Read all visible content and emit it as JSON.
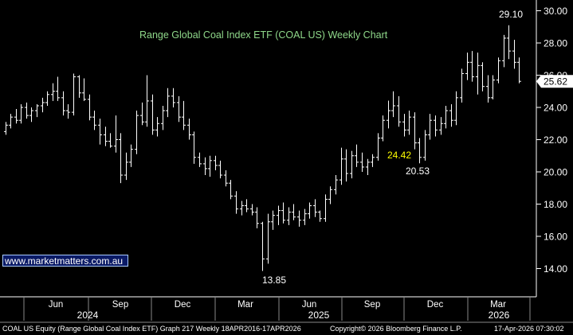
{
  "chart_data": {
    "type": "ohlc",
    "title": "Range Global Coal Index ETF (COAL US) Weekly Chart",
    "ylim": [
      13.0,
      30.6
    ],
    "y_ticks": [
      "14.00",
      "16.00",
      "18.00",
      "20.00",
      "22.00",
      "24.00",
      "26.00",
      "28.00",
      "30.00"
    ],
    "x_month_ticks": [
      "Jun",
      "Sep",
      "Dec",
      "Mar",
      "Jun",
      "Sep",
      "Dec",
      "Mar"
    ],
    "x_year_ticks": [
      "2024",
      "2025",
      "2026"
    ],
    "last_price": "25.62",
    "annotations": [
      "29.10",
      "24.42",
      "20.53",
      "13.85"
    ],
    "series": [
      {
        "values": [
          [
            22.5,
            23.1,
            22.3,
            22.9
          ],
          [
            22.9,
            23.6,
            22.7,
            23.4
          ],
          [
            23.4,
            23.9,
            23.0,
            23.2
          ],
          [
            23.2,
            24.2,
            23.0,
            24.0
          ],
          [
            24.0,
            24.3,
            23.3,
            23.5
          ],
          [
            23.5,
            24.0,
            23.1,
            23.8
          ],
          [
            23.8,
            24.2,
            23.4,
            24.1
          ],
          [
            24.1,
            24.6,
            23.7,
            24.3
          ],
          [
            24.3,
            25.0,
            24.1,
            24.8
          ],
          [
            24.8,
            25.5,
            24.4,
            25.0
          ],
          [
            25.0,
            25.9,
            24.4,
            24.6
          ],
          [
            24.6,
            25.0,
            23.5,
            23.8
          ],
          [
            23.8,
            24.2,
            23.3,
            23.7
          ],
          [
            23.7,
            26.1,
            23.5,
            25.9
          ],
          [
            25.9,
            26.0,
            24.6,
            24.9
          ],
          [
            24.9,
            25.8,
            24.4,
            24.5
          ],
          [
            24.5,
            24.8,
            23.2,
            23.4
          ],
          [
            23.4,
            23.8,
            22.6,
            22.9
          ],
          [
            22.9,
            23.3,
            21.7,
            22.3
          ],
          [
            22.3,
            22.8,
            21.6,
            21.9
          ],
          [
            21.9,
            22.4,
            21.5,
            21.6
          ],
          [
            21.6,
            23.5,
            21.2,
            22.0
          ],
          [
            22.0,
            22.4,
            19.3,
            19.8
          ],
          [
            19.8,
            21.2,
            19.5,
            20.6
          ],
          [
            20.6,
            21.7,
            20.3,
            21.4
          ],
          [
            21.4,
            23.8,
            21.1,
            23.5
          ],
          [
            23.5,
            24.3,
            22.9,
            23.1
          ],
          [
            23.1,
            26.0,
            22.8,
            24.4
          ],
          [
            24.4,
            24.8,
            22.3,
            22.6
          ],
          [
            22.6,
            23.4,
            22.2,
            23.0
          ],
          [
            23.0,
            24.1,
            22.6,
            23.8
          ],
          [
            23.8,
            25.2,
            23.4,
            24.7
          ],
          [
            24.7,
            25.2,
            24.0,
            24.3
          ],
          [
            24.3,
            24.7,
            23.1,
            23.4
          ],
          [
            23.4,
            24.4,
            22.6,
            22.9
          ],
          [
            22.9,
            23.3,
            22.0,
            22.3
          ],
          [
            22.3,
            22.5,
            20.5,
            20.9
          ],
          [
            20.9,
            21.2,
            20.3,
            20.5
          ],
          [
            20.5,
            20.9,
            19.8,
            20.2
          ],
          [
            20.2,
            21.0,
            19.7,
            20.7
          ],
          [
            20.7,
            21.0,
            20.1,
            20.4
          ],
          [
            20.4,
            20.7,
            19.6,
            19.8
          ],
          [
            19.8,
            20.1,
            19.1,
            19.3
          ],
          [
            19.3,
            19.5,
            18.3,
            18.5
          ],
          [
            18.5,
            18.8,
            17.4,
            17.7
          ],
          [
            17.7,
            18.2,
            17.3,
            17.9
          ],
          [
            17.9,
            18.3,
            17.5,
            17.7
          ],
          [
            17.7,
            18.0,
            17.3,
            17.5
          ],
          [
            17.5,
            17.8,
            16.5,
            16.8
          ],
          [
            16.8,
            16.9,
            13.85,
            14.6
          ],
          [
            14.6,
            17.4,
            14.3,
            16.9
          ],
          [
            16.9,
            17.6,
            16.4,
            17.3
          ],
          [
            17.3,
            17.9,
            16.7,
            17.6
          ],
          [
            17.6,
            18.1,
            16.8,
            17.0
          ],
          [
            17.0,
            17.8,
            16.7,
            17.5
          ],
          [
            17.5,
            18.0,
            17.0,
            17.2
          ],
          [
            17.2,
            17.6,
            16.6,
            17.0
          ],
          [
            17.0,
            17.7,
            16.7,
            17.4
          ],
          [
            17.4,
            18.1,
            17.1,
            17.9
          ],
          [
            17.9,
            18.3,
            17.2,
            17.5
          ],
          [
            17.5,
            17.6,
            16.9,
            17.1
          ],
          [
            17.1,
            18.6,
            16.9,
            18.3
          ],
          [
            18.3,
            19.1,
            18.0,
            18.9
          ],
          [
            18.9,
            19.8,
            18.6,
            19.5
          ],
          [
            19.5,
            21.5,
            19.2,
            20.8
          ],
          [
            20.8,
            21.4,
            19.4,
            19.9
          ],
          [
            19.9,
            21.3,
            19.6,
            21.0
          ],
          [
            21.0,
            21.7,
            20.3,
            20.6
          ],
          [
            20.6,
            21.2,
            20.0,
            20.3
          ],
          [
            20.3,
            20.8,
            19.8,
            20.6
          ],
          [
            20.6,
            21.1,
            20.3,
            20.9
          ],
          [
            20.9,
            22.4,
            20.7,
            22.1
          ],
          [
            22.1,
            23.5,
            21.9,
            23.2
          ],
          [
            23.2,
            24.42,
            22.7,
            23.8
          ],
          [
            23.8,
            25.0,
            23.4,
            24.1
          ],
          [
            24.1,
            24.7,
            22.8,
            23.1
          ],
          [
            23.1,
            23.6,
            22.2,
            22.6
          ],
          [
            22.6,
            23.8,
            22.3,
            23.4
          ],
          [
            23.4,
            23.7,
            21.4,
            21.8
          ],
          [
            21.8,
            22.1,
            20.53,
            20.9
          ],
          [
            20.9,
            22.6,
            20.7,
            22.3
          ],
          [
            22.3,
            23.6,
            22.0,
            23.2
          ],
          [
            23.2,
            23.5,
            22.2,
            22.6
          ],
          [
            22.6,
            23.4,
            22.3,
            23.0
          ],
          [
            23.0,
            24.1,
            22.7,
            23.8
          ],
          [
            23.8,
            24.2,
            22.8,
            23.2
          ],
          [
            23.2,
            25.0,
            22.9,
            24.6
          ],
          [
            24.6,
            26.4,
            24.3,
            26.1
          ],
          [
            26.1,
            27.4,
            25.7,
            26.8
          ],
          [
            26.8,
            27.5,
            25.6,
            25.9
          ],
          [
            25.9,
            27.4,
            24.8,
            26.6
          ],
          [
            26.6,
            26.8,
            25.0,
            25.3
          ],
          [
            25.3,
            26.0,
            24.3,
            24.6
          ],
          [
            24.6,
            26.0,
            24.5,
            25.7
          ],
          [
            25.7,
            27.1,
            25.5,
            26.9
          ],
          [
            26.9,
            28.5,
            26.5,
            28.3
          ],
          [
            28.3,
            29.1,
            27.0,
            27.5
          ],
          [
            27.5,
            28.2,
            26.4,
            26.8
          ],
          [
            26.8,
            27.1,
            25.5,
            25.62
          ]
        ]
      }
    ]
  },
  "footer": {
    "left": "COAL US Equity (Range Global Coal Index ETF) Graph 217 Weekly 18APR2016-17APR2026",
    "center": "Copyright© 2026 Bloomberg Finance L.P.",
    "right": "17-Apr-2026 07:30:02"
  },
  "watermark": "www.marketmatters.com.au",
  "colors": {
    "background": "#000000",
    "bars": "#ffffff",
    "axis": "#ffffff",
    "title": "#8fd88a",
    "annotation_yellow": "#ffff00",
    "watermark_bg": "#0a1a66"
  }
}
